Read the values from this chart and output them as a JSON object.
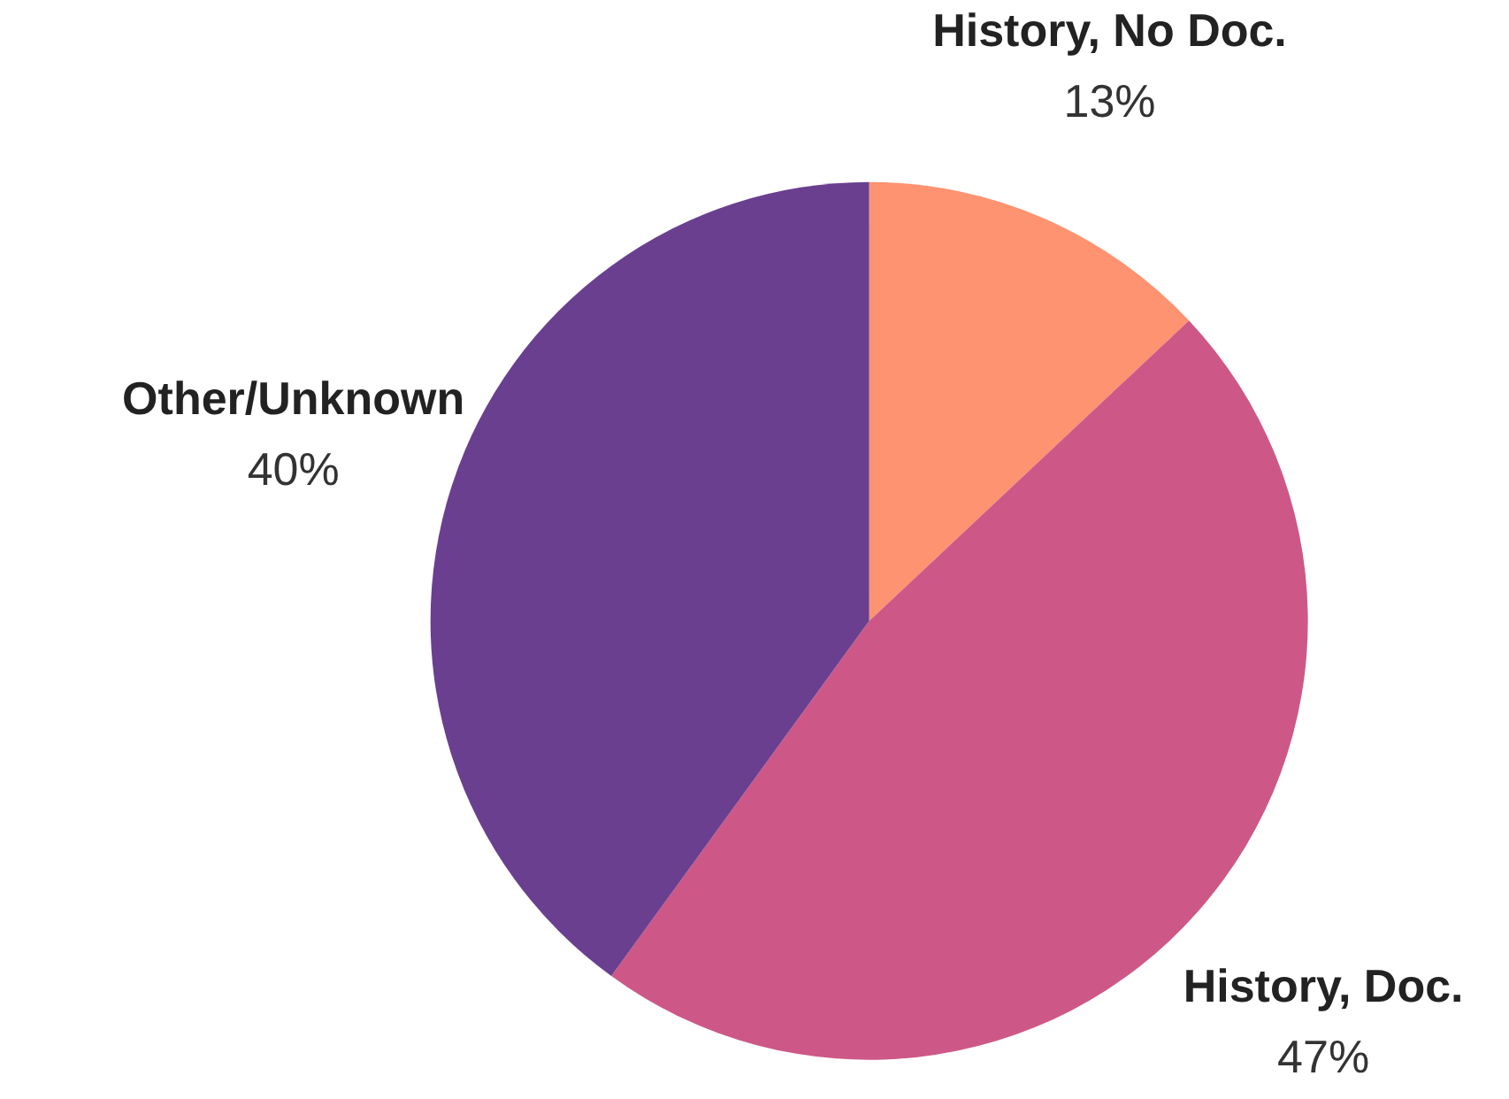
{
  "chart_data": {
    "type": "pie",
    "categories": [
      "History, No Doc.",
      "History, Doc.",
      "Other/Unknown"
    ],
    "values": [
      13,
      47,
      40
    ],
    "value_labels": [
      "13%",
      "47%",
      "40%"
    ],
    "colors": [
      "#fd9370",
      "#cd5887",
      "#6a3f8f"
    ]
  }
}
